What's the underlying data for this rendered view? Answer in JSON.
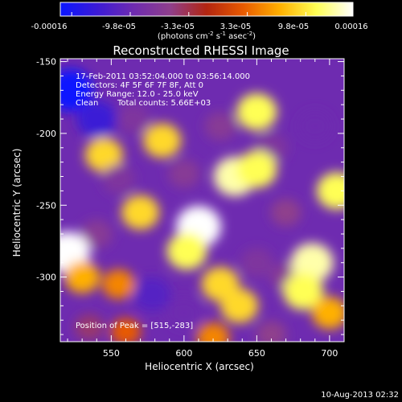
{
  "colorbar": {
    "ticks": [
      "-0.00016",
      "-9.8e-05",
      "-3.3e-05",
      "3.3e-05",
      "9.8e-05",
      "0.00016"
    ],
    "unit_prefix": "(photons cm",
    "unit_exp1": "-2",
    "unit_mid": " s",
    "unit_exp2": "-1",
    "unit_mid2": " asec",
    "unit_exp3": "-2",
    "unit_suffix": ")",
    "colors": [
      "#0a16ff",
      "#3b1ad6",
      "#6e2bb0",
      "#8f3f8c",
      "#b22510",
      "#e85a00",
      "#ffb000",
      "#ffff55",
      "#ffffff"
    ]
  },
  "annotation": {
    "line1": "17-Feb-2011 03:52:04.000 to 03:56:14.000",
    "line2": "Detectors: 4F 5F 6F 7F 8F, Att 0",
    "line3": "Energy Range: 12.0 - 25.0 keV",
    "line4_left": "Clean",
    "line4_right": "Total counts: 5.66E+03",
    "peak": "Position of Peak = [515,-283]"
  },
  "footer": {
    "timestamp": "10-Aug-2013 02:32"
  },
  "chart_data": {
    "type": "heatmap",
    "title": "Reconstructed RHESSI Image",
    "xlabel": "Heliocentric X (arcsec)",
    "ylabel": "Heliocentric Y (arcsec)",
    "xlim": [
      515,
      710
    ],
    "ylim": [
      -345,
      -148
    ],
    "xticks": [
      550,
      600,
      650,
      700
    ],
    "yticks": [
      -150,
      -200,
      -250,
      -300
    ],
    "xtick_labels": [
      "550",
      "600",
      "650",
      "700"
    ],
    "ytick_labels": [
      "-150",
      "-200",
      "-250",
      "-300"
    ],
    "color_range": [
      -0.00016,
      0.00016
    ],
    "blobs": [
      {
        "x": 522,
        "y": -170,
        "v": -0.00016
      },
      {
        "x": 540,
        "y": -190,
        "v": -0.00012
      },
      {
        "x": 545,
        "y": -215,
        "v": 0.0001
      },
      {
        "x": 585,
        "y": -205,
        "v": 0.0001
      },
      {
        "x": 565,
        "y": -190,
        "v": -6e-05
      },
      {
        "x": 555,
        "y": -232,
        "v": -6e-05
      },
      {
        "x": 600,
        "y": -228,
        "v": -5e-05
      },
      {
        "x": 625,
        "y": -195,
        "v": -5e-05
      },
      {
        "x": 650,
        "y": -185,
        "v": 0.00012
      },
      {
        "x": 660,
        "y": -210,
        "v": -6e-05
      },
      {
        "x": 690,
        "y": -195,
        "v": -8e-05
      },
      {
        "x": 635,
        "y": -230,
        "v": 0.00014
      },
      {
        "x": 650,
        "y": -225,
        "v": 0.00012
      },
      {
        "x": 705,
        "y": -240,
        "v": 0.00012
      },
      {
        "x": 570,
        "y": -255,
        "v": 0.0001
      },
      {
        "x": 610,
        "y": -265,
        "v": 0.00016
      },
      {
        "x": 602,
        "y": -282,
        "v": 0.00012
      },
      {
        "x": 540,
        "y": -270,
        "v": -5e-05
      },
      {
        "x": 670,
        "y": -255,
        "v": -4e-05
      },
      {
        "x": 520,
        "y": -283,
        "v": 0.00016
      },
      {
        "x": 530,
        "y": -300,
        "v": 8e-05
      },
      {
        "x": 555,
        "y": -305,
        "v": 6e-05
      },
      {
        "x": 578,
        "y": -312,
        "v": -0.0001
      },
      {
        "x": 600,
        "y": -325,
        "v": -8e-05
      },
      {
        "x": 625,
        "y": -305,
        "v": 0.0001
      },
      {
        "x": 638,
        "y": -320,
        "v": 0.0001
      },
      {
        "x": 650,
        "y": -290,
        "v": -6e-05
      },
      {
        "x": 670,
        "y": -300,
        "v": -5e-05
      },
      {
        "x": 688,
        "y": -290,
        "v": 0.00014
      },
      {
        "x": 682,
        "y": -310,
        "v": 0.00012
      },
      {
        "x": 700,
        "y": -325,
        "v": 8e-05
      },
      {
        "x": 560,
        "y": -338,
        "v": 4e-05
      },
      {
        "x": 535,
        "y": -335,
        "v": -3e-05
      },
      {
        "x": 660,
        "y": -340,
        "v": -4e-05
      },
      {
        "x": 620,
        "y": -342,
        "v": 6e-05
      }
    ]
  }
}
